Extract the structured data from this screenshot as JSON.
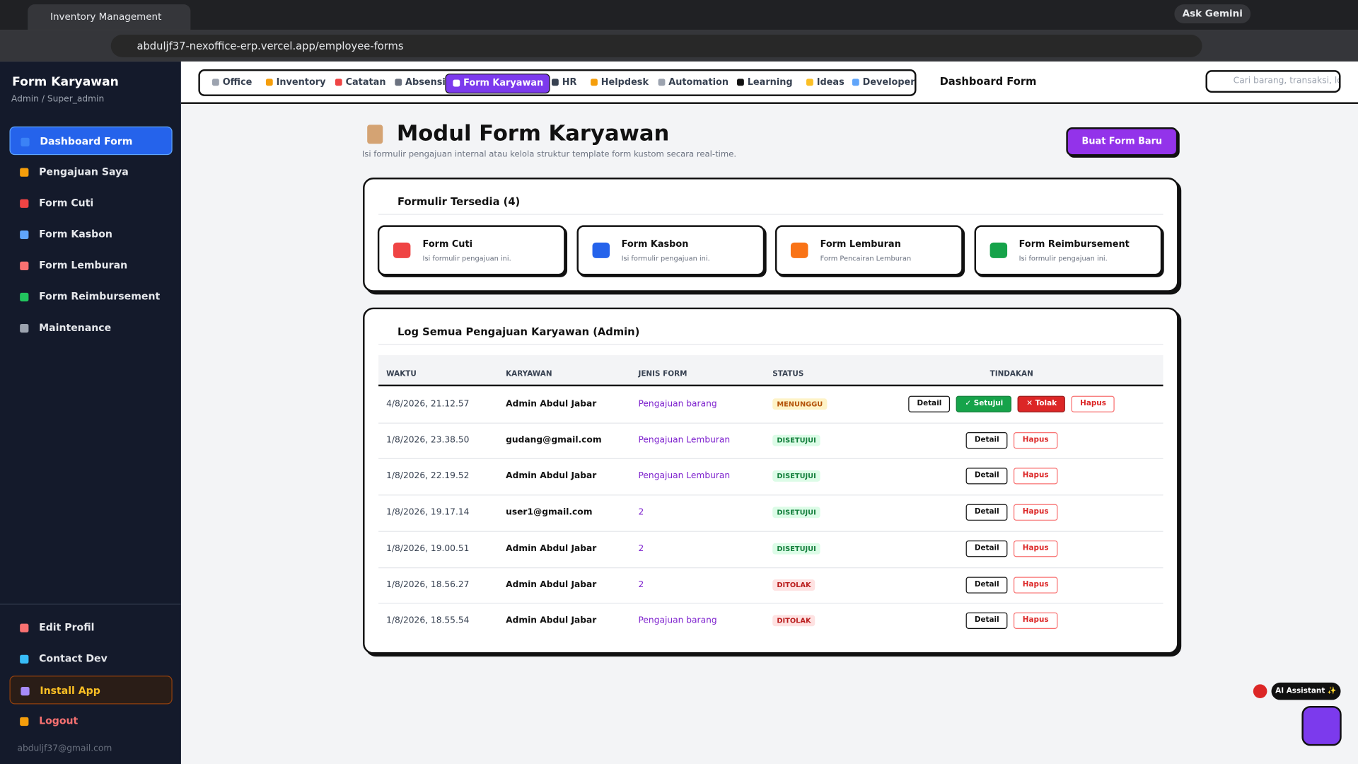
{
  "browser": {
    "tab_title": "Inventory Management",
    "gemini": "Ask Gemini",
    "url": "abduljf37-nexoffice-erp.vercel.app/employee-forms"
  },
  "sidebar": {
    "title": "Form Karyawan",
    "subtitle": "Admin / Super_admin",
    "active": 0,
    "items": [
      "Dashboard Form",
      "Pengajuan Saya",
      "Form Cuti",
      "Form Kasbon",
      "Form Lemburan",
      "Form Reimbursement",
      "Maintenance"
    ],
    "bottom": [
      "Edit Profil",
      "Contact Dev",
      "Install App",
      "Logout"
    ],
    "email": "abduljf37@gmail.com"
  },
  "nav": {
    "active": 4,
    "tabs": [
      "Office",
      "Inventory",
      "Catatan",
      "Absensi",
      "Form Karyawan",
      "HR",
      "Helpdesk",
      "Automation",
      "Learning",
      "Ideas",
      "Developer"
    ],
    "current": "Dashboard Form",
    "search": "Cari barang, transaksi, lo"
  },
  "header": {
    "title": "Modul Form Karyawan",
    "subtitle": "Isi formulir pengajuan internal atau kelola struktur template form kustom secara real-time.",
    "button": "Buat Form Baru"
  },
  "forms": {
    "title": "Formulir Tersedia (4)",
    "cards": [
      {
        "name": "Form Cuti",
        "desc": "Isi formulir pengajuan ini."
      },
      {
        "name": "Form Kasbon",
        "desc": "Isi formulir pengajuan ini."
      },
      {
        "name": "Form Lemburan",
        "desc": "Form Pencairan Lemburan"
      },
      {
        "name": "Form Reimbursement",
        "desc": "Isi formulir pengajuan ini."
      }
    ]
  },
  "log": {
    "title": "Log Semua Pengajuan Karyawan (Admin)",
    "columns": [
      "WAKTU",
      "KARYAWAN",
      "JENIS FORM",
      "STATUS",
      "TINDAKAN"
    ],
    "rows": [
      {
        "time": "4/8/2026, 21.12.57",
        "employee": "Admin Abdul Jabar",
        "form": "Pengajuan barang",
        "status": "MENUNGGU",
        "status_color": "#b45309",
        "status_bg": "#fef3c7",
        "actions": [
          "Detail",
          "✓ Setujui",
          "✕ Tolak",
          "Hapus"
        ]
      },
      {
        "time": "1/8/2026, 23.38.50",
        "employee": "gudang@gmail.com",
        "form": "Pengajuan Lemburan",
        "status": "DISETUJUI",
        "status_color": "#15803d",
        "status_bg": "#dcfce7",
        "actions": [
          "Detail",
          "Hapus"
        ]
      },
      {
        "time": "1/8/2026, 22.19.52",
        "employee": "Admin Abdul Jabar",
        "form": "Pengajuan Lemburan",
        "status": "DISETUJUI",
        "status_color": "#15803d",
        "status_bg": "#dcfce7",
        "actions": [
          "Detail",
          "Hapus"
        ]
      },
      {
        "time": "1/8/2026, 19.17.14",
        "employee": "user1@gmail.com",
        "form": "2",
        "status": "DISETUJUI",
        "status_color": "#15803d",
        "status_bg": "#dcfce7",
        "actions": [
          "Detail",
          "Hapus"
        ]
      },
      {
        "time": "1/8/2026, 19.00.51",
        "employee": "Admin Abdul Jabar",
        "form": "2",
        "status": "DISETUJUI",
        "status_color": "#15803d",
        "status_bg": "#dcfce7",
        "actions": [
          "Detail",
          "Hapus"
        ]
      },
      {
        "time": "1/8/2026, 18.56.27",
        "employee": "Admin Abdul Jabar",
        "form": "2",
        "status": "DITOLAK",
        "status_color": "#b91c1c",
        "status_bg": "#fee2e2",
        "actions": [
          "Detail",
          "Hapus"
        ]
      },
      {
        "time": "1/8/2026, 18.55.54",
        "employee": "Admin Abdul Jabar",
        "form": "Pengajuan barang",
        "status": "DITOLAK",
        "status_color": "#b91c1c",
        "status_bg": "#fee2e2",
        "actions": [
          "Detail",
          "Hapus"
        ]
      }
    ]
  },
  "assistant": {
    "label": "AI Assistant ✨"
  }
}
